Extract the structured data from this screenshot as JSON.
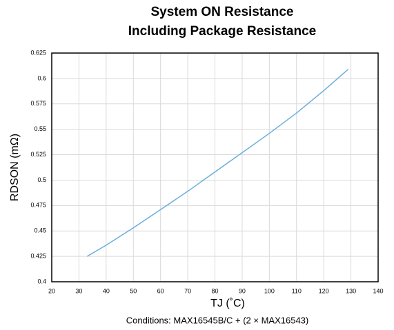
{
  "chart_data": {
    "type": "line",
    "title": [
      "System ON Resistance",
      "Including Package Resistance"
    ],
    "xlabel": "TJ (˚C)",
    "ylabel": "RDSON (mΩ)",
    "note": "Conditions: MAX16545B/C + (2 × MAX16543)",
    "x": [
      33,
      40,
      50,
      60,
      70,
      80,
      90,
      100,
      110,
      120,
      129
    ],
    "series": [
      {
        "color": "#6aaedb",
        "values": [
          0.425,
          0.436,
          0.453,
          0.471,
          0.489,
          0.508,
          0.527,
          0.546,
          0.566,
          0.588,
          0.609
        ]
      }
    ],
    "xlim": [
      20,
      140
    ],
    "xticks": [
      20,
      30,
      40,
      50,
      60,
      70,
      80,
      90,
      100,
      110,
      120,
      130,
      140
    ],
    "ylim": [
      0.4,
      0.625
    ],
    "yticks": [
      0.4,
      0.425,
      0.45,
      0.475,
      0.5,
      0.525,
      0.55,
      0.575,
      0.6,
      0.625
    ],
    "grid": true
  }
}
